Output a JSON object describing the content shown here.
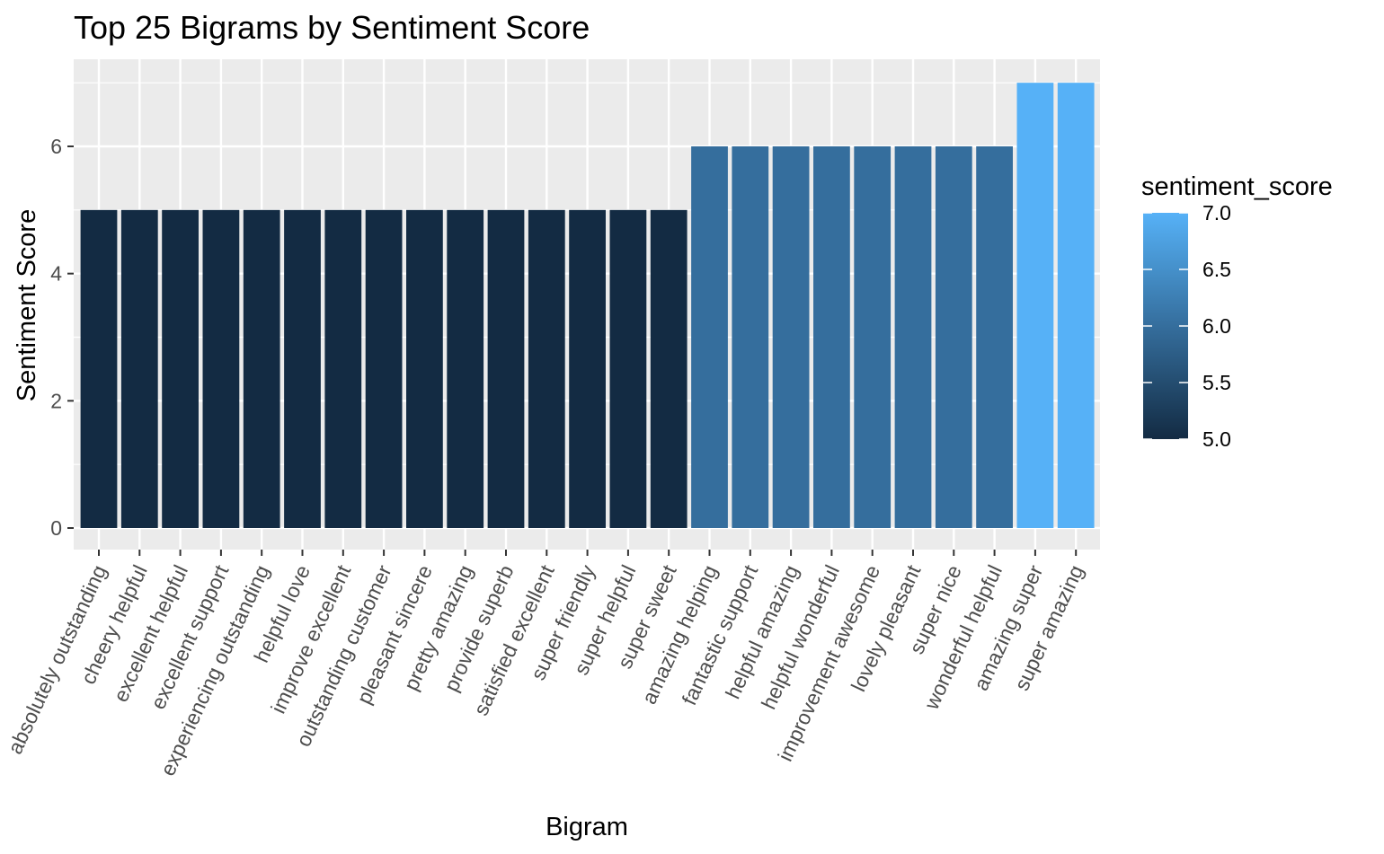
{
  "chart_data": {
    "type": "bar",
    "title": "Top 25 Bigrams by Sentiment Score",
    "xlabel": "Bigram",
    "ylabel": "Sentiment Score",
    "categories": [
      "absolutely outstanding",
      "cheery helpful",
      "excellent helpful",
      "excellent support",
      "experiencing outstanding",
      "helpful love",
      "improve excellent",
      "outstanding customer",
      "pleasant sincere",
      "pretty amazing",
      "provide superb",
      "satisfied excellent",
      "super friendly",
      "super helpful",
      "super sweet",
      "amazing helping",
      "fantastic support",
      "helpful amazing",
      "helpful wonderful",
      "improvement awesome",
      "lovely pleasant",
      "super nice",
      "wonderful helpful",
      "amazing super",
      "super amazing"
    ],
    "values": [
      5,
      5,
      5,
      5,
      5,
      5,
      5,
      5,
      5,
      5,
      5,
      5,
      5,
      5,
      5,
      6,
      6,
      6,
      6,
      6,
      6,
      6,
      6,
      7,
      7
    ],
    "ylim": [
      0,
      7.2
    ],
    "yticks": [
      "0",
      "2",
      "4",
      "6"
    ],
    "grid": true,
    "legend": {
      "title": "sentiment_score",
      "placement": "right",
      "labels": [
        "7.0",
        "6.5",
        "6.0",
        "5.5",
        "5.0"
      ],
      "low_color": "#132B43",
      "high_color": "#56B1F7",
      "range": [
        5,
        7
      ]
    },
    "panel_background": "#EBEBEB",
    "grid_color": "#FFFFFF"
  }
}
